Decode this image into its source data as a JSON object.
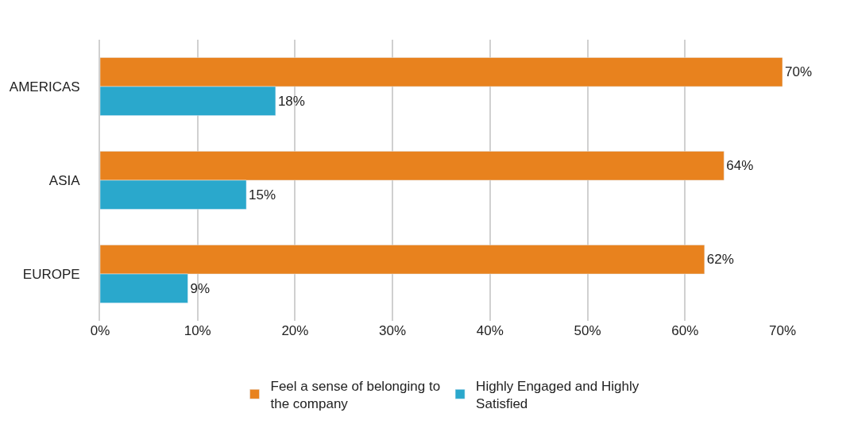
{
  "chart_data": {
    "type": "bar",
    "orientation": "horizontal",
    "categories": [
      "AMERICAS",
      "ASIA",
      "EUROPE"
    ],
    "series": [
      {
        "name": "Feel a sense of belonging to the company",
        "color": "#e8821e",
        "values": [
          70,
          64,
          62
        ],
        "value_labels": [
          "70%",
          "64%",
          "62%"
        ]
      },
      {
        "name": "Highly Engaged and Highly Satisfied",
        "color": "#2aa8cc",
        "values": [
          18,
          15,
          9
        ],
        "value_labels": [
          "18%",
          "15%",
          "9%"
        ]
      }
    ],
    "xlim": [
      0,
      70
    ],
    "xticks": [
      {
        "value": 0,
        "label": "0%"
      },
      {
        "value": 10,
        "label": "10%"
      },
      {
        "value": 20,
        "label": "20%"
      },
      {
        "value": 30,
        "label": "30%"
      },
      {
        "value": 40,
        "label": "40%"
      },
      {
        "value": 50,
        "label": "50%"
      },
      {
        "value": 60,
        "label": "60%"
      },
      {
        "value": 70,
        "label": "70%"
      }
    ],
    "grid": "x",
    "legend": "bottom"
  }
}
